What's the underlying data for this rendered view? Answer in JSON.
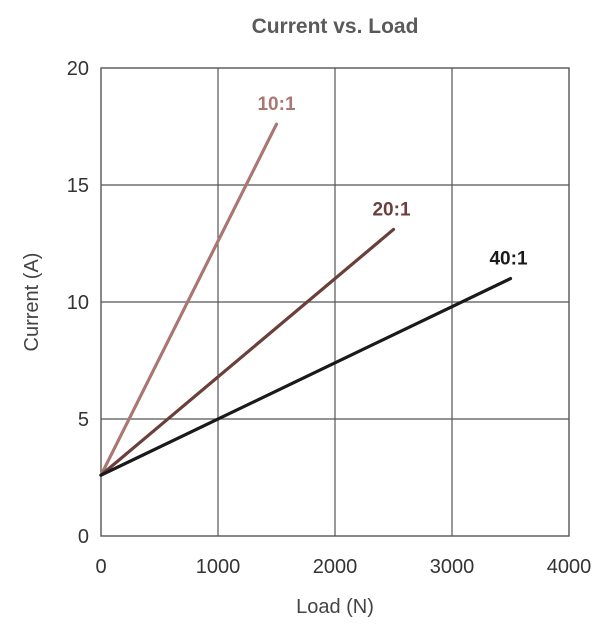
{
  "chart_data": {
    "type": "line",
    "title": "Current  vs. Load",
    "xlabel": "Load (N)",
    "ylabel": "Current (A)",
    "xlim": [
      0,
      4000
    ],
    "ylim": [
      0,
      20
    ],
    "x_ticks": [
      "0",
      "1000",
      "2000",
      "3000",
      "4000"
    ],
    "y_ticks": [
      "0",
      "5",
      "10",
      "15",
      "20"
    ],
    "grid": true,
    "series": [
      {
        "name": "10:1",
        "color": "#a87872",
        "x": [
          0,
          1500
        ],
        "y": [
          2.6,
          17.6
        ]
      },
      {
        "name": "20:1",
        "color": "#6b3f3a",
        "x": [
          0,
          2500
        ],
        "y": [
          2.6,
          13.1
        ]
      },
      {
        "name": "40:1",
        "color": "#1a1a1a",
        "x": [
          0,
          3500
        ],
        "y": [
          2.6,
          11.0
        ]
      }
    ]
  }
}
